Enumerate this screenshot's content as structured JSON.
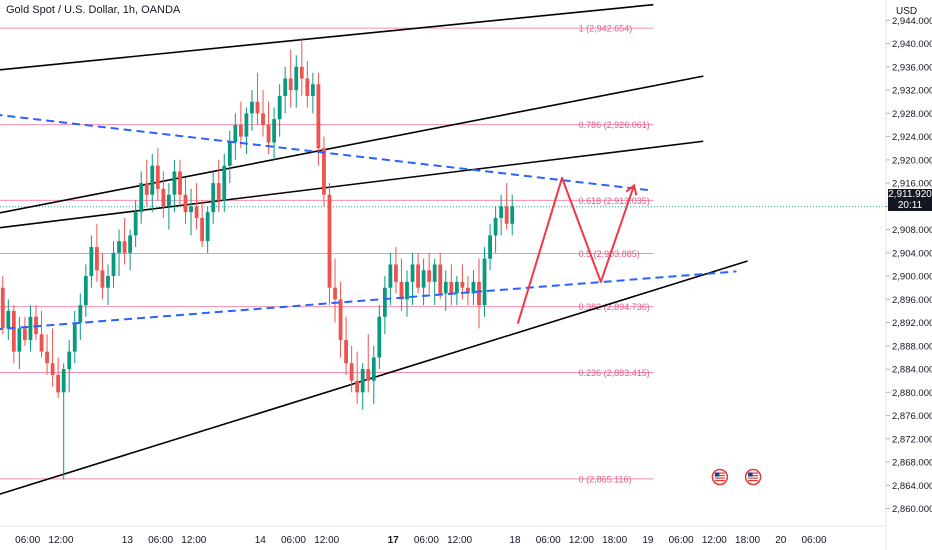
{
  "header": {
    "title": "Gold Spot / U.S. Dollar, 1h, OANDA",
    "currency": "USD"
  },
  "last_price": {
    "value": "2,911.920",
    "countdown": "20:11"
  },
  "colors": {
    "up": "#089981",
    "down": "#ef5350",
    "fib": "#f48fb1",
    "channel": "#000000",
    "trend_dashed": "#2962ff",
    "projection": "#f23645",
    "current_price_line": "#22ab94"
  },
  "chart_data": {
    "type": "candlestick",
    "title": "Gold Spot / U.S. Dollar, 1h, OANDA",
    "ylabel": "USD",
    "ylim": [
      2857.0,
      2947.5
    ],
    "yticks": [
      2944,
      2940,
      2936,
      2932,
      2928,
      2924,
      2920,
      2916,
      2912,
      2908,
      2904,
      2900,
      2896,
      2892,
      2888,
      2884,
      2880,
      2876,
      2872,
      2868,
      2864,
      2860
    ],
    "ytick_labels": [
      "2,944.000",
      "2,940.000",
      "2,936.000",
      "2,932.000",
      "2,928.000",
      "2,924.000",
      "2,920.000",
      "2,916.000",
      "2,912.000",
      "2,908.000",
      "2,904.000",
      "2,900.000",
      "2,896.000",
      "2,892.000",
      "2,888.000",
      "2,884.000",
      "2,880.000",
      "2,876.000",
      "2,872.000",
      "2,868.000",
      "2,864.000",
      "2,860.000"
    ],
    "xlim": [
      0,
      160
    ],
    "xticks": [
      {
        "x": 5,
        "label": "06:00",
        "bold": false
      },
      {
        "x": 11,
        "label": "12:00",
        "bold": false
      },
      {
        "x": 23,
        "label": "13",
        "bold": false
      },
      {
        "x": 29,
        "label": "06:00",
        "bold": false
      },
      {
        "x": 35,
        "label": "12:00",
        "bold": false
      },
      {
        "x": 47,
        "label": "14",
        "bold": false
      },
      {
        "x": 53,
        "label": "06:00",
        "bold": false
      },
      {
        "x": 59,
        "label": "12:00",
        "bold": false
      },
      {
        "x": 71,
        "label": "17",
        "bold": true
      },
      {
        "x": 77,
        "label": "06:00",
        "bold": false
      },
      {
        "x": 83,
        "label": "12:00",
        "bold": false
      },
      {
        "x": 93,
        "label": "18",
        "bold": false
      },
      {
        "x": 99,
        "label": "06:00",
        "bold": false
      },
      {
        "x": 105,
        "label": "12:00",
        "bold": false
      },
      {
        "x": 111,
        "label": "18:00",
        "bold": false
      },
      {
        "x": 117,
        "label": "19",
        "bold": false
      },
      {
        "x": 123,
        "label": "06:00",
        "bold": false
      },
      {
        "x": 129,
        "label": "12:00",
        "bold": false
      },
      {
        "x": 135,
        "label": "18:00",
        "bold": false
      },
      {
        "x": 141,
        "label": "20",
        "bold": false
      },
      {
        "x": 147,
        "label": "06:00",
        "bold": false
      }
    ],
    "candles": [
      [
        2898,
        2900,
        2890,
        2891
      ],
      [
        2891,
        2896,
        2889,
        2894
      ],
      [
        2894,
        2895,
        2885,
        2887
      ],
      [
        2887,
        2893,
        2884,
        2891
      ],
      [
        2891,
        2893,
        2888,
        2889
      ],
      [
        2889,
        2895,
        2887,
        2893
      ],
      [
        2893,
        2895,
        2889,
        2890
      ],
      [
        2890,
        2894,
        2886,
        2887
      ],
      [
        2887,
        2890,
        2883,
        2885
      ],
      [
        2885,
        2891,
        2881,
        2883
      ],
      [
        2883,
        2886,
        2879,
        2880
      ],
      [
        2880,
        2885,
        2865,
        2884
      ],
      [
        2884,
        2889,
        2880,
        2887
      ],
      [
        2887,
        2894,
        2885,
        2892
      ],
      [
        2892,
        2897,
        2889,
        2895
      ],
      [
        2895,
        2902,
        2893,
        2900
      ],
      [
        2900,
        2907,
        2898,
        2905
      ],
      [
        2905,
        2909,
        2899,
        2901
      ],
      [
        2901,
        2904,
        2896,
        2898
      ],
      [
        2898,
        2902,
        2895,
        2900
      ],
      [
        2900,
        2906,
        2898,
        2904
      ],
      [
        2904,
        2908,
        2900,
        2906
      ],
      [
        2906,
        2910,
        2902,
        2904
      ],
      [
        2904,
        2908,
        2901,
        2907
      ],
      [
        2907,
        2913,
        2905,
        2911
      ],
      [
        2911,
        2918,
        2909,
        2916
      ],
      [
        2916,
        2920,
        2912,
        2914
      ],
      [
        2914,
        2921,
        2911,
        2919
      ],
      [
        2919,
        2922,
        2913,
        2915
      ],
      [
        2915,
        2918,
        2910,
        2912
      ],
      [
        2912,
        2916,
        2908,
        2914
      ],
      [
        2914,
        2920,
        2911,
        2918
      ],
      [
        2918,
        2920,
        2912,
        2914
      ],
      [
        2914,
        2917,
        2909,
        2911
      ],
      [
        2911,
        2915,
        2907,
        2912
      ],
      [
        2912,
        2916,
        2908,
        2910
      ],
      [
        2910,
        2913,
        2905,
        2906
      ],
      [
        2906,
        2912,
        2904,
        2911
      ],
      [
        2911,
        2918,
        2909,
        2916
      ],
      [
        2916,
        2920,
        2911,
        2913
      ],
      [
        2913,
        2921,
        2911,
        2919
      ],
      [
        2919,
        2925,
        2916,
        2923
      ],
      [
        2923,
        2928,
        2920,
        2926
      ],
      [
        2926,
        2930,
        2922,
        2924
      ],
      [
        2924,
        2929,
        2921,
        2928
      ],
      [
        2928,
        2932,
        2925,
        2930
      ],
      [
        2930,
        2935,
        2926,
        2928
      ],
      [
        2928,
        2932,
        2924,
        2926
      ],
      [
        2926,
        2930,
        2921,
        2923
      ],
      [
        2923,
        2929,
        2920,
        2927
      ],
      [
        2927,
        2933,
        2924,
        2931
      ],
      [
        2931,
        2936,
        2928,
        2934
      ],
      [
        2934,
        2939,
        2929,
        2932
      ],
      [
        2932,
        2938,
        2929,
        2936
      ],
      [
        2936,
        2941,
        2931,
        2934
      ],
      [
        2934,
        2937,
        2929,
        2931
      ],
      [
        2931,
        2935,
        2928,
        2933
      ],
      [
        2933,
        2935,
        2919,
        2922
      ],
      [
        2922,
        2924,
        2912,
        2914
      ],
      [
        2914,
        2916,
        2895,
        2898
      ],
      [
        2898,
        2903,
        2892,
        2896
      ],
      [
        2896,
        2899,
        2886,
        2889
      ],
      [
        2889,
        2893,
        2883,
        2885
      ],
      [
        2885,
        2888,
        2880,
        2882
      ],
      [
        2882,
        2887,
        2878,
        2880
      ],
      [
        2880,
        2885,
        2877,
        2884
      ],
      [
        2884,
        2890,
        2880,
        2882
      ],
      [
        2882,
        2888,
        2878,
        2886
      ],
      [
        2886,
        2895,
        2884,
        2893
      ],
      [
        2893,
        2900,
        2890,
        2898
      ],
      [
        2898,
        2904,
        2895,
        2902
      ],
      [
        2902,
        2905,
        2897,
        2899
      ],
      [
        2899,
        2903,
        2894,
        2896
      ],
      [
        2896,
        2901,
        2893,
        2899
      ],
      [
        2899,
        2904,
        2895,
        2902
      ],
      [
        2902,
        2904,
        2897,
        2898
      ],
      [
        2898,
        2903,
        2895,
        2901
      ],
      [
        2901,
        2904,
        2897,
        2899
      ],
      [
        2899,
        2903,
        2895,
        2902
      ],
      [
        2902,
        2904,
        2896,
        2897
      ],
      [
        2897,
        2901,
        2894,
        2899
      ],
      [
        2899,
        2902,
        2895,
        2897
      ],
      [
        2897,
        2900,
        2895,
        2899
      ],
      [
        2899,
        2902,
        2896,
        2898
      ],
      [
        2898,
        2900,
        2895,
        2897
      ],
      [
        2897,
        2901,
        2895,
        2899
      ],
      [
        2899,
        2903,
        2891,
        2895
      ],
      [
        2895,
        2905,
        2893,
        2903
      ],
      [
        2903,
        2909,
        2901,
        2907
      ],
      [
        2907,
        2912,
        2904,
        2910
      ],
      [
        2910,
        2914,
        2907,
        2912
      ],
      [
        2912,
        2916,
        2908,
        2909
      ],
      [
        2909,
        2914,
        2907,
        2912
      ]
    ],
    "fibonacci": [
      {
        "ratio": "1",
        "price": 2942.654,
        "label": "1 (2,942.654)"
      },
      {
        "ratio": "0.786",
        "price": 2926.061,
        "label": "0.786 (2,926.061)"
      },
      {
        "ratio": "0.618",
        "price": 2913.035,
        "label": "0.618 (2,913.035)"
      },
      {
        "ratio": "0.5",
        "price": 2903.885,
        "label": "0.5 (2,903.885)"
      },
      {
        "ratio": "0.382",
        "price": 2894.736,
        "label": "0.382 (2,894.736)"
      },
      {
        "ratio": "0.236",
        "price": 2883.415,
        "label": "0.236 (2,883.415)"
      },
      {
        "ratio": "0",
        "price": 2865.116,
        "label": "0 (2,865.116)"
      }
    ],
    "channel_lines": [
      {
        "x1": -1,
        "y1": 2935.4,
        "x2": 118,
        "y2": 2946.7
      },
      {
        "x1": -1,
        "y1": 2910.7,
        "x2": 127,
        "y2": 2934.4
      },
      {
        "x1": -1,
        "y1": 2908.2,
        "x2": 127,
        "y2": 2923.2
      },
      {
        "x1": -1,
        "y1": 2862.2,
        "x2": 135,
        "y2": 2902.6
      }
    ],
    "dashed_lines": [
      {
        "x1": -1,
        "y1": 2927.8,
        "x2": 117,
        "y2": 2914.8
      },
      {
        "x1": -1,
        "y1": 2890.8,
        "x2": 133,
        "y2": 2900.8
      }
    ],
    "projection_path": [
      [
        93.5,
        2891.8
      ],
      [
        101.5,
        2916.9
      ],
      [
        108.5,
        2899.0
      ],
      [
        114.5,
        2915.6
      ]
    ],
    "current_price": 2911.92,
    "event_markers": [
      {
        "x": 130
      },
      {
        "x": 136
      }
    ]
  }
}
